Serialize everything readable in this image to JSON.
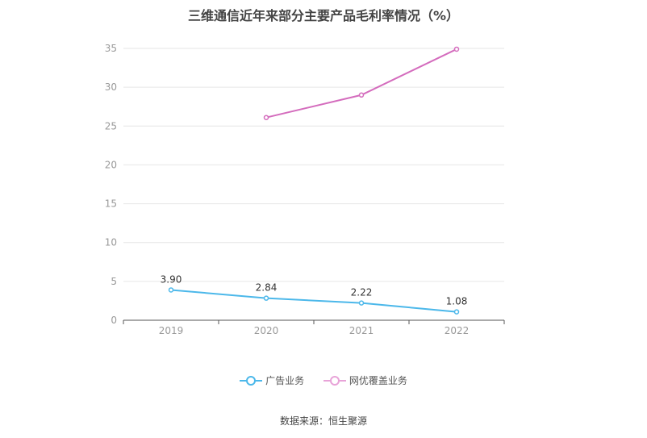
{
  "chart_data": {
    "type": "line",
    "title": "三维通信近年来部分主要产品毛利率情况（%）",
    "categories": [
      "2019",
      "2020",
      "2021",
      "2022"
    ],
    "series": [
      {
        "name": "广告业务",
        "color": "#4cb8ea",
        "values": [
          3.9,
          2.84,
          2.22,
          1.08
        ],
        "labels": [
          "3.90",
          "2.84",
          "2.22",
          "1.08"
        ]
      },
      {
        "name": "网优覆盖业务",
        "color": "#d46cbd",
        "values": [
          null,
          26.1,
          29.0,
          34.9
        ],
        "labels": null
      }
    ],
    "ylim": [
      0,
      35
    ],
    "yticks": [
      0,
      5,
      10,
      15,
      20,
      25,
      30,
      35
    ],
    "grid": true,
    "legend_position": "bottom"
  },
  "source": "数据来源：恒生聚源"
}
